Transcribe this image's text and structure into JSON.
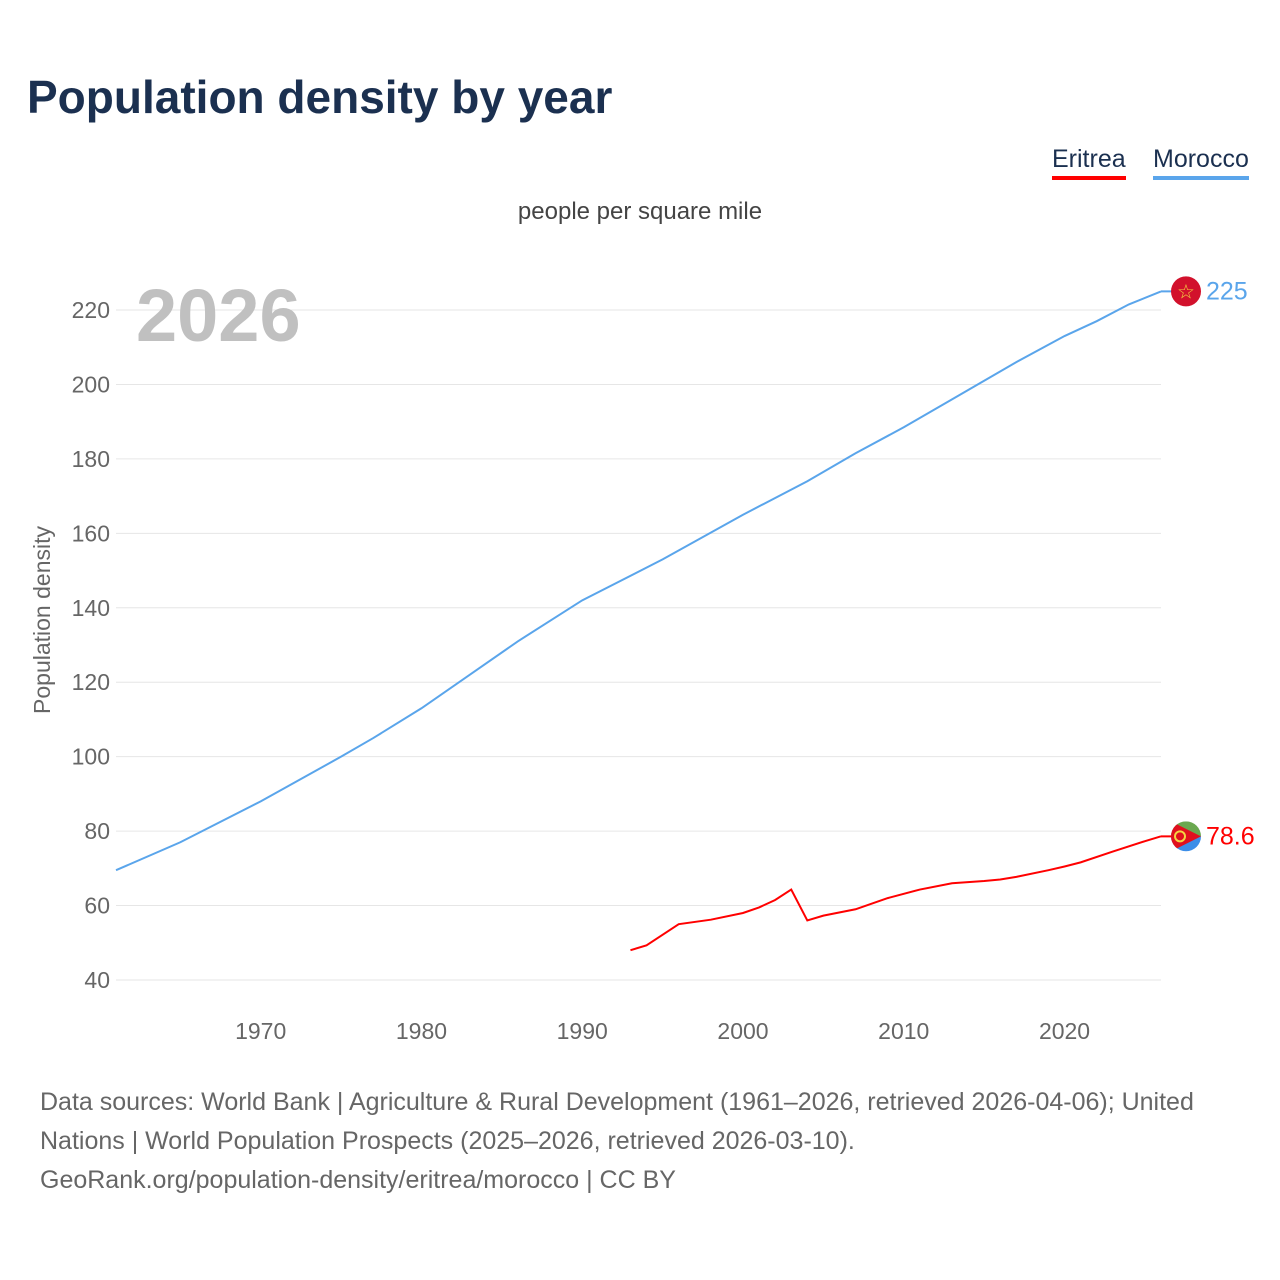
{
  "title": "Population density by year",
  "subtitle": "people per square mile",
  "footer": {
    "line1": "Data sources: World Bank | Agriculture & Rural Development (1961–2026, retrieved 2026-04-06); United Nations | World Population Prospects (2025–2026, retrieved 2026-03-10).",
    "line2": "GeoRank.org/population-density/eritrea/morocco | CC BY"
  },
  "colors": {
    "eritrea": "#ff0000",
    "morocco": "#5aa5eb"
  },
  "chart_data": {
    "type": "line",
    "title": "Population density by year",
    "subtitle": "people per square mile",
    "ylabel": "Population density",
    "xlabel": "",
    "year_watermark": "2026",
    "xlim": [
      1961,
      2026
    ],
    "ylim": [
      35,
      228
    ],
    "xticks": [
      1970,
      1980,
      1990,
      2000,
      2010,
      2020
    ],
    "yticks": [
      40,
      60,
      80,
      100,
      120,
      140,
      160,
      180,
      200,
      220
    ],
    "grid": true,
    "legend_position": "top-right",
    "series": [
      {
        "name": "Eritrea",
        "color": "#ff0000",
        "end_label": "78.6",
        "flag": "eritrea-flag",
        "x": [
          1993,
          1994,
          1996,
          1998,
          2000,
          2001,
          2002,
          2003,
          2004,
          2005,
          2007,
          2009,
          2011,
          2013,
          2015,
          2016,
          2017,
          2019,
          2020,
          2021,
          2023,
          2025,
          2026
        ],
        "y": [
          48,
          49.3,
          55,
          56.2,
          58,
          59.5,
          61.5,
          64.3,
          56,
          57.3,
          59,
          62,
          64.3,
          66,
          66.6,
          67,
          67.7,
          69.5,
          70.5,
          71.6,
          74.5,
          77.3,
          78.6
        ]
      },
      {
        "name": "Morocco",
        "color": "#5aa5eb",
        "end_label": "225",
        "flag": "morocco-flag",
        "x": [
          1961,
          1965,
          1970,
          1975,
          1977,
          1980,
          1983,
          1986,
          1990,
          1995,
          2000,
          2004,
          2007,
          2010,
          2013,
          2015,
          2017,
          2020,
          2022,
          2024,
          2026
        ],
        "y": [
          69.5,
          77,
          88,
          100,
          105,
          113,
          122,
          131,
          142,
          153,
          165,
          174,
          181.5,
          188.5,
          196,
          201,
          206,
          213,
          217,
          221.5,
          225
        ]
      }
    ]
  }
}
